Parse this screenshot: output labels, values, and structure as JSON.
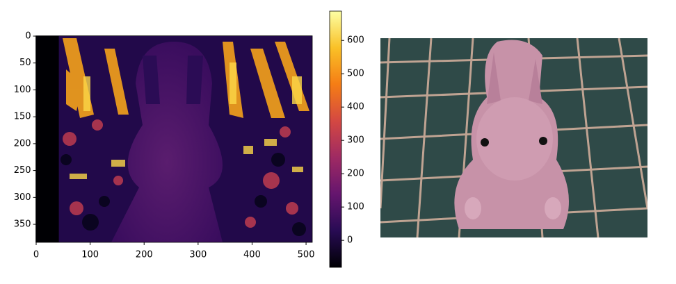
{
  "chart_data": {
    "type": "image",
    "xlim": [
      -0.5,
      511.5
    ],
    "ylim": [
      383.5,
      -0.5
    ],
    "xticks": [
      0,
      100,
      200,
      300,
      400,
      500
    ],
    "yticks": [
      0,
      50,
      100,
      150,
      200,
      250,
      300,
      350
    ],
    "cmap": "inferno",
    "colorbar": {
      "lim": [
        -81,
        688
      ],
      "ticks": [
        0,
        100,
        200,
        300,
        400,
        500,
        600
      ]
    }
  }
}
